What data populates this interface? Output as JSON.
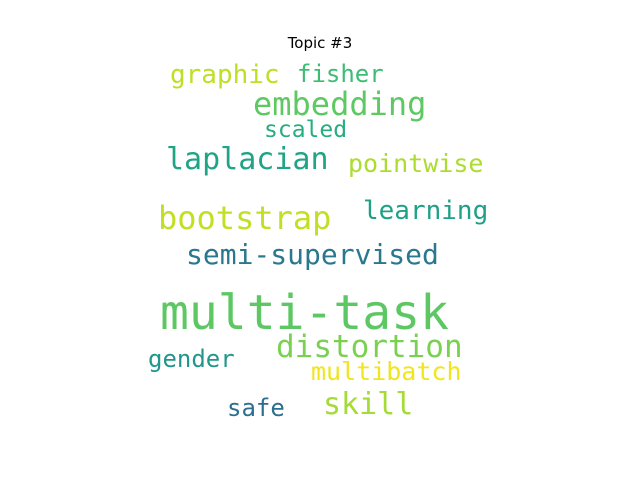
{
  "chart_data": {
    "type": "wordcloud",
    "title": "Topic #3",
    "words": [
      {
        "text": "multi-task",
        "color": "#5dc863"
      },
      {
        "text": "embedding",
        "color": "#5ec962"
      },
      {
        "text": "bootstrap",
        "color": "#c2df23"
      },
      {
        "text": "semi-supervised",
        "color": "#2a788e"
      },
      {
        "text": "distortion",
        "color": "#7ad151"
      },
      {
        "text": "laplacian",
        "color": "#20a486"
      },
      {
        "text": "skill",
        "color": "#a5db36"
      },
      {
        "text": "learning",
        "color": "#1fa187"
      },
      {
        "text": "graphic",
        "color": "#bddf26"
      },
      {
        "text": "pointwise",
        "color": "#addc30"
      },
      {
        "text": "multibatch",
        "color": "#f1e51d"
      },
      {
        "text": "fisher",
        "color": "#3dbc74"
      },
      {
        "text": "scaled",
        "color": "#26ad81"
      },
      {
        "text": "gender",
        "color": "#22968b"
      },
      {
        "text": "safe",
        "color": "#2c6e8e"
      }
    ]
  }
}
